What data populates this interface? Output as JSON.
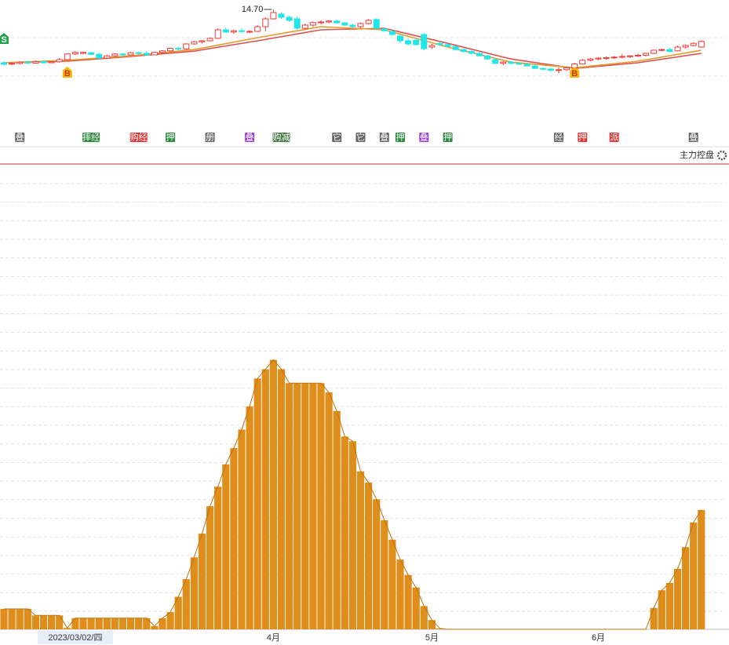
{
  "chart_data": [
    {
      "type": "candlestick",
      "up_color": "#f03a3a",
      "down_color": "#22e6e6",
      "ylim": [
        12.45,
        14.95
      ],
      "values": [
        [
          13.0,
          13.05,
          12.92,
          12.95
        ],
        [
          12.97,
          13.02,
          12.93,
          12.98
        ],
        [
          12.98,
          13.05,
          12.95,
          13.02
        ],
        [
          13.02,
          13.06,
          12.96,
          12.99
        ],
        [
          12.99,
          13.08,
          12.97,
          13.04
        ],
        [
          13.04,
          13.07,
          12.98,
          13.0
        ],
        [
          13.0,
          13.05,
          12.99,
          13.03
        ],
        [
          13.03,
          13.15,
          13.0,
          13.1
        ],
        [
          13.1,
          13.3,
          13.08,
          13.28
        ],
        [
          13.28,
          13.38,
          13.25,
          13.33
        ],
        [
          13.3,
          13.36,
          13.28,
          13.33
        ],
        [
          13.32,
          13.35,
          13.25,
          13.27
        ],
        [
          13.27,
          13.32,
          13.12,
          13.15
        ],
        [
          13.15,
          13.25,
          13.12,
          13.22
        ],
        [
          13.22,
          13.3,
          13.2,
          13.28
        ],
        [
          13.28,
          13.31,
          13.22,
          13.25
        ],
        [
          13.25,
          13.35,
          13.23,
          13.32
        ],
        [
          13.32,
          13.36,
          13.26,
          13.3
        ],
        [
          13.3,
          13.38,
          13.22,
          13.25
        ],
        [
          13.25,
          13.35,
          13.24,
          13.33
        ],
        [
          13.33,
          13.4,
          13.3,
          13.38
        ],
        [
          13.38,
          13.48,
          13.36,
          13.46
        ],
        [
          13.46,
          13.52,
          13.4,
          13.44
        ],
        [
          13.44,
          13.62,
          13.42,
          13.6
        ],
        [
          13.6,
          13.7,
          13.58,
          13.67
        ],
        [
          13.67,
          13.72,
          13.62,
          13.7
        ],
        [
          13.7,
          13.8,
          13.68,
          13.78
        ],
        [
          13.78,
          14.1,
          13.76,
          14.05
        ],
        [
          14.05,
          14.12,
          13.95,
          13.98
        ],
        [
          13.98,
          14.05,
          13.93,
          14.02
        ],
        [
          14.02,
          14.1,
          13.96,
          14.0
        ],
        [
          13.98,
          14.04,
          13.94,
          14.0
        ],
        [
          14.0,
          14.2,
          13.98,
          14.15
        ],
        [
          14.15,
          14.45,
          14.0,
          14.4
        ],
        [
          14.4,
          14.7,
          14.38,
          14.6
        ],
        [
          14.55,
          14.62,
          14.4,
          14.45
        ],
        [
          14.45,
          14.5,
          14.3,
          14.35
        ],
        [
          14.4,
          14.48,
          14.05,
          14.1
        ],
        [
          14.1,
          14.25,
          14.05,
          14.2
        ],
        [
          14.2,
          14.32,
          14.15,
          14.28
        ],
        [
          14.28,
          14.35,
          14.22,
          14.3
        ],
        [
          14.3,
          14.36,
          14.26,
          14.33
        ],
        [
          14.33,
          14.38,
          14.25,
          14.27
        ],
        [
          14.27,
          14.3,
          14.18,
          14.2
        ],
        [
          14.2,
          14.25,
          14.12,
          14.15
        ],
        [
          14.15,
          14.28,
          14.1,
          14.25
        ],
        [
          14.25,
          14.4,
          14.22,
          14.35
        ],
        [
          14.38,
          14.42,
          14.05,
          14.1
        ],
        [
          14.08,
          14.1,
          13.98,
          14.02
        ],
        [
          14.0,
          14.05,
          13.85,
          13.9
        ],
        [
          13.85,
          13.9,
          13.62,
          13.7
        ],
        [
          13.7,
          13.78,
          13.55,
          13.6
        ],
        [
          13.72,
          13.8,
          13.55,
          13.58
        ],
        [
          13.9,
          13.95,
          13.4,
          13.45
        ],
        [
          13.5,
          13.6,
          13.45,
          13.55
        ],
        [
          13.62,
          13.68,
          13.55,
          13.58
        ],
        [
          13.58,
          13.62,
          13.5,
          13.52
        ],
        [
          13.52,
          13.55,
          13.38,
          13.42
        ],
        [
          13.42,
          13.46,
          13.32,
          13.36
        ],
        [
          13.36,
          13.4,
          13.26,
          13.3
        ],
        [
          13.3,
          13.34,
          13.2,
          13.22
        ],
        [
          13.22,
          13.25,
          13.1,
          13.12
        ],
        [
          13.1,
          13.14,
          12.95,
          12.98
        ],
        [
          12.98,
          13.05,
          12.92,
          13.02
        ],
        [
          13.02,
          13.06,
          12.95,
          12.98
        ],
        [
          12.98,
          13.02,
          12.93,
          12.96
        ],
        [
          12.96,
          12.98,
          12.88,
          12.9
        ],
        [
          12.9,
          12.93,
          12.8,
          12.82
        ],
        [
          12.82,
          12.86,
          12.76,
          12.8
        ],
        [
          12.8,
          12.84,
          12.72,
          12.76
        ],
        [
          12.76,
          12.85,
          12.66,
          12.78
        ],
        [
          12.78,
          12.88,
          12.74,
          12.84
        ],
        [
          12.84,
          13.0,
          12.82,
          12.96
        ],
        [
          12.96,
          13.12,
          12.94,
          13.08
        ],
        [
          13.08,
          13.16,
          13.05,
          13.12
        ],
        [
          13.12,
          13.18,
          13.08,
          13.15
        ],
        [
          13.15,
          13.2,
          13.1,
          13.16
        ],
        [
          13.16,
          13.22,
          13.12,
          13.18
        ],
        [
          13.18,
          13.28,
          13.14,
          13.2
        ],
        [
          13.2,
          13.24,
          13.15,
          13.22
        ],
        [
          13.22,
          13.28,
          13.18,
          13.24
        ],
        [
          13.24,
          13.32,
          13.2,
          13.3
        ],
        [
          13.3,
          13.42,
          13.28,
          13.4
        ],
        [
          13.4,
          13.45,
          13.36,
          13.42
        ],
        [
          13.42,
          13.48,
          13.33,
          13.36
        ],
        [
          13.38,
          13.55,
          13.36,
          13.5
        ],
        [
          13.5,
          13.58,
          13.45,
          13.55
        ],
        [
          13.55,
          13.65,
          13.52,
          13.62
        ],
        [
          13.5,
          13.72,
          13.48,
          13.68
        ]
      ],
      "moving_averages": [
        {
          "color": "#e05050",
          "x": [
            0,
            8,
            16,
            24,
            32,
            40,
            48,
            56,
            64,
            72,
            80,
            88
          ],
          "values": [
            13.0,
            13.05,
            13.2,
            13.37,
            13.7,
            14.05,
            14.1,
            13.62,
            13.12,
            12.82,
            13.0,
            13.3
          ]
        },
        {
          "color": "#e39a2b",
          "x": [
            0,
            8,
            16,
            24,
            32,
            40,
            48,
            56,
            64,
            72,
            80,
            88
          ],
          "values": [
            13.0,
            13.08,
            13.22,
            13.42,
            13.8,
            14.15,
            14.05,
            13.5,
            13.02,
            12.84,
            13.05,
            13.4
          ]
        }
      ],
      "annotation": {
        "text": "14.70",
        "index": 34
      },
      "signals": [
        {
          "text": "S",
          "index": 0,
          "color": "#1ea24a"
        },
        {
          "text": "B",
          "index": 8,
          "color": "#f5b800"
        },
        {
          "text": "B",
          "index": 72,
          "color": "#f5b800"
        }
      ],
      "tags": [
        {
          "text": "叠",
          "index": 2,
          "color": "#666666"
        },
        {
          "text": "摔经",
          "index": 11,
          "color": "#2e8b3e"
        },
        {
          "text": "购经",
          "index": 17,
          "color": "#d93636"
        },
        {
          "text": "押",
          "index": 21,
          "color": "#2e8b3e"
        },
        {
          "text": "册",
          "index": 26,
          "color": "#666666"
        },
        {
          "text": "叠",
          "index": 31,
          "color": "#9b3fd1"
        },
        {
          "text": "购减",
          "index": 35,
          "color": "#4a7a4a"
        },
        {
          "text": "它",
          "index": 42,
          "color": "#666666"
        },
        {
          "text": "它",
          "index": 45,
          "color": "#666666"
        },
        {
          "text": "叠",
          "index": 48,
          "color": "#666666"
        },
        {
          "text": "押",
          "index": 50,
          "color": "#2e8b3e"
        },
        {
          "text": "叠",
          "index": 53,
          "color": "#9b3fd1"
        },
        {
          "text": "押",
          "index": 56,
          "color": "#2e8b3e"
        },
        {
          "text": "经",
          "index": 70,
          "color": "#666666"
        },
        {
          "text": "押",
          "index": 73,
          "color": "#d93636"
        },
        {
          "text": "派",
          "index": 77,
          "color": "#d93636"
        },
        {
          "text": "叠",
          "index": 87,
          "color": "#666666"
        }
      ]
    },
    {
      "type": "bar",
      "title": "主力控盘",
      "color": "#e08e1b",
      "line_color": "#c2720f",
      "grid": true,
      "ylim": [
        0,
        100
      ],
      "categories": [
        null,
        null,
        null,
        null,
        null,
        null,
        null,
        null,
        null,
        "2023/03/02/四",
        null,
        null,
        null,
        null,
        null,
        null,
        null,
        null,
        null,
        null,
        null,
        null,
        null,
        null,
        null,
        null,
        null,
        null,
        null,
        null,
        null,
        null,
        null,
        null,
        "4月",
        null,
        null,
        null,
        null,
        null,
        null,
        null,
        null,
        null,
        null,
        null,
        null,
        null,
        null,
        null,
        null,
        null,
        null,
        null,
        "5月",
        null,
        null,
        null,
        null,
        null,
        null,
        null,
        null,
        null,
        null,
        null,
        null,
        null,
        null,
        null,
        null,
        null,
        null,
        null,
        null,
        "6月",
        null,
        null,
        null,
        null,
        null,
        null,
        null,
        null,
        null,
        null,
        null,
        null,
        null
      ],
      "values": [
        4.4,
        4.4,
        4.4,
        4.4,
        3,
        3,
        3,
        3,
        0.3,
        2.4,
        2.4,
        2.4,
        2.4,
        2.4,
        2.4,
        2.4,
        2.4,
        2.4,
        2.4,
        0.7,
        2.4,
        3.7,
        7,
        10.8,
        15.5,
        20.6,
        26.5,
        30.7,
        35.5,
        39,
        43,
        48,
        54,
        56,
        58,
        56,
        53,
        53,
        53,
        53,
        53,
        51,
        47,
        41.5,
        40.5,
        34,
        31.6,
        28,
        23.5,
        19.3,
        15,
        11.7,
        9,
        5,
        2,
        0.2,
        0,
        0,
        0,
        0,
        0,
        0,
        0,
        0,
        0,
        0,
        0,
        0,
        0,
        0,
        0,
        0,
        0,
        0,
        0,
        0,
        0,
        0,
        0,
        0,
        0,
        0,
        4.6,
        8.4,
        10,
        13,
        17.7,
        23,
        25.7
      ]
    }
  ]
}
